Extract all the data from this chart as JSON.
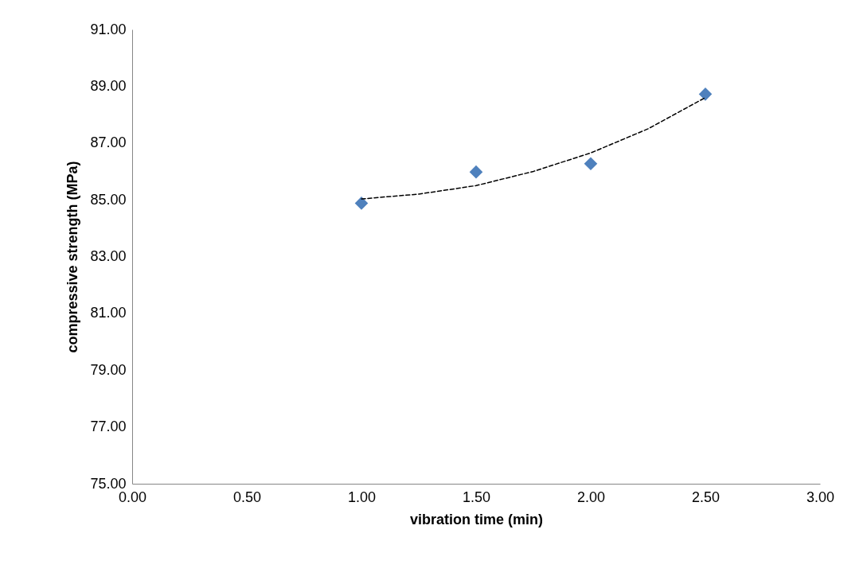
{
  "chart_data": {
    "type": "scatter",
    "xlabel": "vibration time (min)",
    "ylabel": "compressive strength (MPa)",
    "x": [
      1.0,
      1.5,
      2.0,
      2.5
    ],
    "series": [
      {
        "color": "#4f81bd",
        "marker": "diamond",
        "values": [
          84.88,
          85.98,
          86.27,
          88.72
        ]
      },
      {
        "type": "line",
        "color": "#000000",
        "line_style": "dashed",
        "marker": "none",
        "x": [
          1.0,
          1.25,
          1.5,
          1.75,
          2.0,
          2.25,
          2.5
        ],
        "values": [
          85.03,
          85.2,
          85.5,
          86.0,
          86.65,
          87.5,
          88.6
        ]
      }
    ],
    "xlim": [
      0,
      3
    ],
    "xticks": [
      {
        "value": 0,
        "label": "0.00"
      },
      {
        "value": 0.5,
        "label": "0.50"
      },
      {
        "value": 1,
        "label": "1.00"
      },
      {
        "value": 1.5,
        "label": "1.50"
      },
      {
        "value": 2,
        "label": "2.00"
      },
      {
        "value": 2.5,
        "label": "2.50"
      },
      {
        "value": 3,
        "label": "3.00"
      }
    ],
    "ylim": [
      75,
      91
    ],
    "yticks": [
      {
        "value": 75,
        "label": "75.00"
      },
      {
        "value": 77,
        "label": "77.00"
      },
      {
        "value": 79,
        "label": "79.00"
      },
      {
        "value": 81,
        "label": "81.00"
      },
      {
        "value": 83,
        "label": "83.00"
      },
      {
        "value": 85,
        "label": "85.00"
      },
      {
        "value": 87,
        "label": "87.00"
      },
      {
        "value": 89,
        "label": "89.00"
      },
      {
        "value": 91,
        "label": "91.00"
      }
    ],
    "grid": false
  }
}
